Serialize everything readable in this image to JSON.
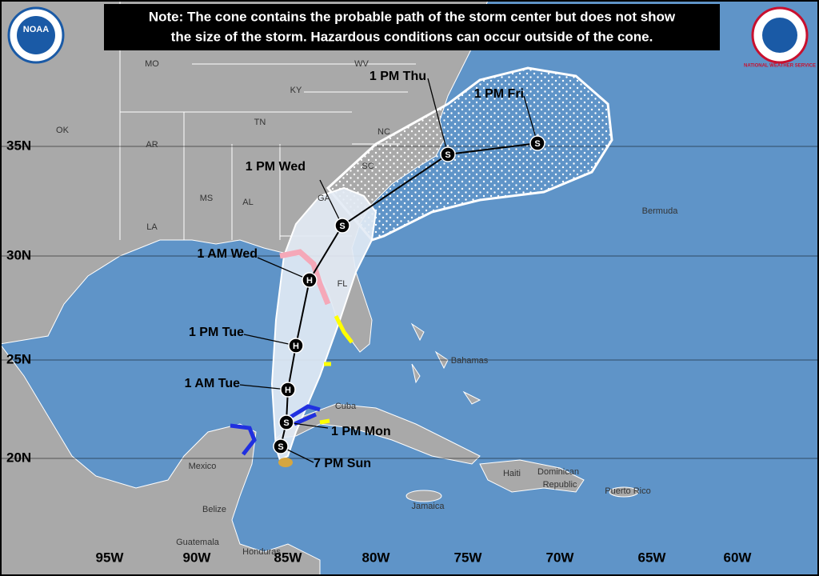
{
  "note": {
    "lines": [
      "Note: The cone contains the probable path of the storm center but does not show",
      "the size of the storm. Hazardous conditions can occur outside of the cone."
    ]
  },
  "logos": {
    "left": "NOAA",
    "right": "NATIONAL WEATHER SERVICE"
  },
  "forecast_points": [
    {
      "label": "7 PM Sun",
      "symbol": "S"
    },
    {
      "label": "1 PM Mon",
      "symbol": "S"
    },
    {
      "label": "1 AM Tue",
      "symbol": "H"
    },
    {
      "label": "1 PM Tue",
      "symbol": "H"
    },
    {
      "label": "1 AM Wed",
      "symbol": "H"
    },
    {
      "label": "1 PM Wed",
      "symbol": "S"
    },
    {
      "label": "1 PM Thu",
      "symbol": "S"
    },
    {
      "label": "1 PM Fri",
      "symbol": "S"
    }
  ],
  "places": [
    "MO",
    "WV",
    "KY",
    "OK",
    "AR",
    "TN",
    "NC",
    "SC",
    "MS",
    "AL",
    "GA",
    "LA",
    "FL",
    "Bermuda",
    "Bahamas",
    "Cuba",
    "Mexico",
    "Belize",
    "Guatemala",
    "Honduras",
    "Haiti",
    "Dominican",
    "Republic",
    "Puerto Rico",
    "Jamaica"
  ],
  "latitude_labels": [
    "35N",
    "30N",
    "25N",
    "20N"
  ],
  "longitude_labels": [
    "95W",
    "90W",
    "85W",
    "80W",
    "75W",
    "70W",
    "65W",
    "60W"
  ]
}
